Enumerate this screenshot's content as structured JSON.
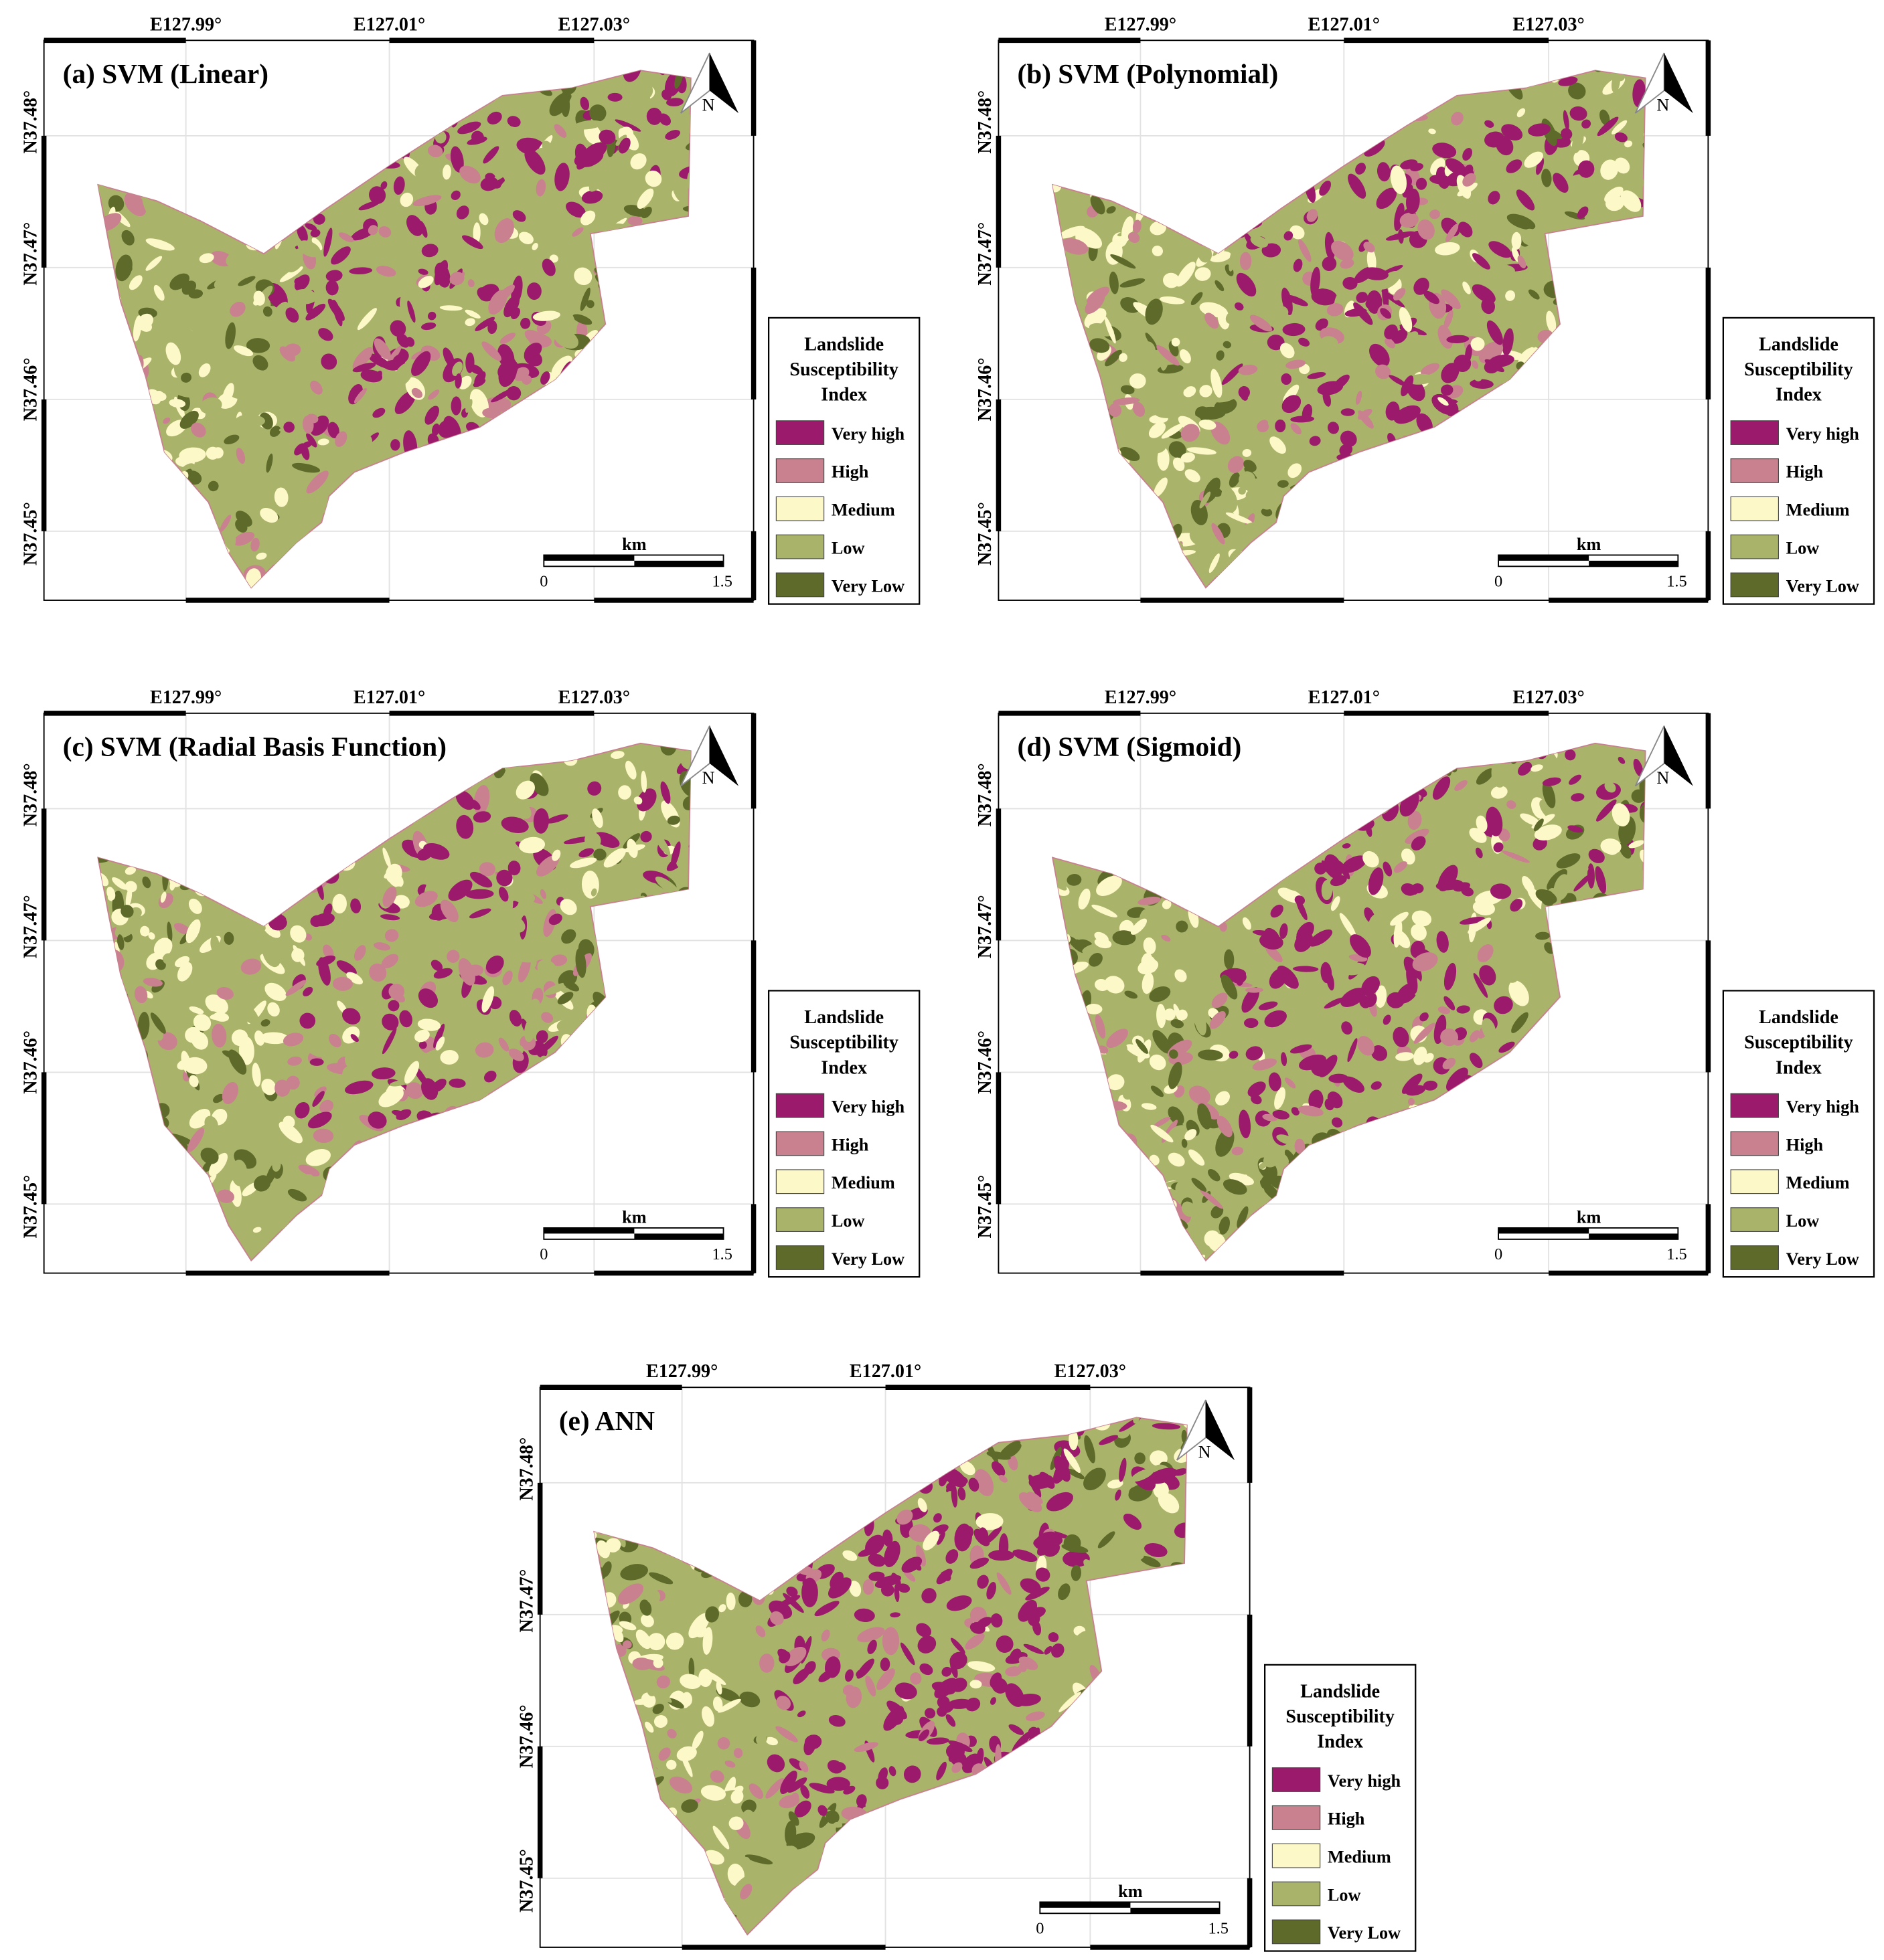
{
  "panels": [
    {
      "title": "(a) SVM (Linear)",
      "x_labels": [
        "E127.99°",
        "E127.01°",
        "E127.03°"
      ],
      "y_labels": [
        "N37.48°",
        "N37.47°",
        "N37.46°",
        "N37.45°"
      ],
      "north_label": "N",
      "legend": {
        "title_lines": [
          "Landslide",
          "Susceptibility",
          "Index"
        ],
        "items": [
          {
            "label": "Very high",
            "color": "#9b1a6c"
          },
          {
            "label": "High",
            "color": "#c9808f"
          },
          {
            "label": "Medium",
            "color": "#fdf8c8"
          },
          {
            "label": "Low",
            "color": "#a9b46a"
          },
          {
            "label": "Very Low",
            "color": "#5d6a2a"
          }
        ]
      },
      "scale_bar": {
        "unit": "km",
        "start": "0",
        "end": "1.5"
      }
    },
    {
      "title": "(b) SVM (Polynomial)",
      "x_labels": [
        "E127.99°",
        "E127.01°",
        "E127.03°"
      ],
      "y_labels": [
        "N37.48°",
        "N37.47°",
        "N37.46°",
        "N37.45°"
      ],
      "north_label": "N",
      "legend": {
        "title_lines": [
          "Landslide",
          "Susceptibility",
          "Index"
        ],
        "items": [
          {
            "label": "Very high",
            "color": "#9b1a6c"
          },
          {
            "label": "High",
            "color": "#c9808f"
          },
          {
            "label": "Medium",
            "color": "#fdf8c8"
          },
          {
            "label": "Low",
            "color": "#a9b46a"
          },
          {
            "label": "Very Low",
            "color": "#5d6a2a"
          }
        ]
      },
      "scale_bar": {
        "unit": "km",
        "start": "0",
        "end": "1.5"
      }
    },
    {
      "title": "(c) SVM (Radial Basis Function)",
      "x_labels": [
        "E127.99°",
        "E127.01°",
        "E127.03°"
      ],
      "y_labels": [
        "N37.48°",
        "N37.47°",
        "N37.46°",
        "N37.45°"
      ],
      "north_label": "N",
      "legend": {
        "title_lines": [
          "Landslide",
          "Susceptibility",
          "Index"
        ],
        "items": [
          {
            "label": "Very high",
            "color": "#9b1a6c"
          },
          {
            "label": "High",
            "color": "#c9808f"
          },
          {
            "label": "Medium",
            "color": "#fdf8c8"
          },
          {
            "label": "Low",
            "color": "#a9b46a"
          },
          {
            "label": "Very Low",
            "color": "#5d6a2a"
          }
        ]
      },
      "scale_bar": {
        "unit": "km",
        "start": "0",
        "end": "1.5"
      }
    },
    {
      "title": "(d) SVM (Sigmoid)",
      "x_labels": [
        "E127.99°",
        "E127.01°",
        "E127.03°"
      ],
      "y_labels": [
        "N37.48°",
        "N37.47°",
        "N37.46°",
        "N37.45°"
      ],
      "north_label": "N",
      "legend": {
        "title_lines": [
          "Landslide",
          "Susceptibility",
          "Index"
        ],
        "items": [
          {
            "label": "Very high",
            "color": "#9b1a6c"
          },
          {
            "label": "High",
            "color": "#c9808f"
          },
          {
            "label": "Medium",
            "color": "#fdf8c8"
          },
          {
            "label": "Low",
            "color": "#a9b46a"
          },
          {
            "label": "Very Low",
            "color": "#5d6a2a"
          }
        ]
      },
      "scale_bar": {
        "unit": "km",
        "start": "0",
        "end": "1.5"
      }
    },
    {
      "title": "(e) ANN",
      "x_labels": [
        "E127.99°",
        "E127.01°",
        "E127.03°"
      ],
      "y_labels": [
        "N37.48°",
        "N37.47°",
        "N37.46°",
        "N37.45°"
      ],
      "north_label": "N",
      "legend": {
        "title_lines": [
          "Landslide",
          "Susceptibility",
          "Index"
        ],
        "items": [
          {
            "label": "Very high",
            "color": "#9b1a6c"
          },
          {
            "label": "High",
            "color": "#c9808f"
          },
          {
            "label": "Medium",
            "color": "#fdf8c8"
          },
          {
            "label": "Low",
            "color": "#a9b46a"
          },
          {
            "label": "Very Low",
            "color": "#5d6a2a"
          }
        ]
      },
      "scale_bar": {
        "unit": "km",
        "start": "0",
        "end": "1.5"
      }
    }
  ]
}
